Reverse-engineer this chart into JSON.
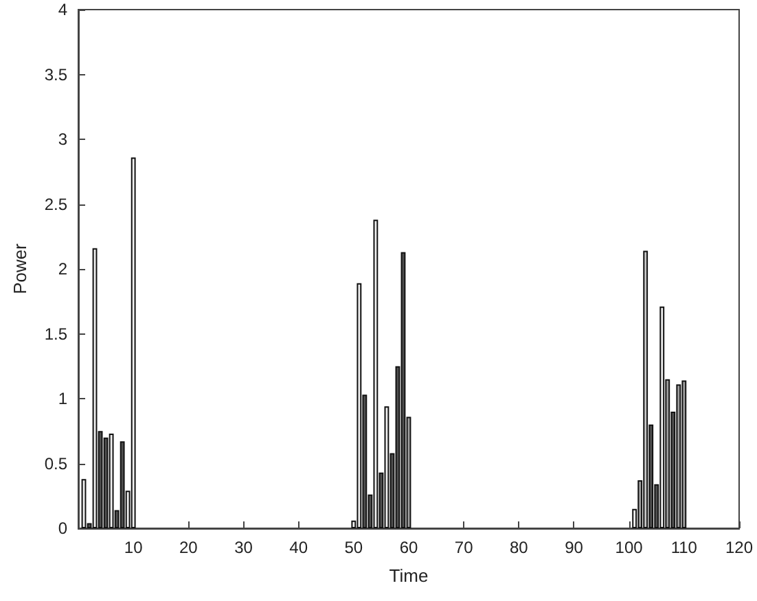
{
  "chart_data": {
    "type": "bar",
    "xlabel": "Time",
    "ylabel": "Power",
    "x": [
      1,
      2,
      3,
      4,
      5,
      6,
      7,
      8,
      9,
      10,
      50,
      51,
      52,
      53,
      54,
      55,
      56,
      57,
      58,
      59,
      60,
      101,
      102,
      103,
      104,
      105,
      106,
      107,
      108,
      109,
      110
    ],
    "values": [
      0.38,
      0.04,
      2.16,
      0.75,
      0.7,
      0.73,
      0.14,
      0.67,
      0.29,
      2.86,
      0.06,
      1.89,
      1.03,
      0.26,
      2.38,
      0.43,
      0.94,
      0.58,
      1.25,
      2.13,
      0.86,
      0.15,
      0.37,
      2.14,
      0.8,
      0.34,
      1.71,
      1.15,
      0.9,
      1.11,
      1.14
    ],
    "colors": [
      "#f0f0f0",
      "#505050",
      "#f0f0f0",
      "#505050",
      "#505050",
      "#f0f0f0",
      "#505050",
      "#505050",
      "#f0f0f0",
      "#f0f0f0",
      "#f0f0f0",
      "#f0f0f0",
      "#505050",
      "#505050",
      "#f0f0f0",
      "#505050",
      "#f0f0f0",
      "#505050",
      "#505050",
      "#505050",
      "#a0a0a0",
      "#f0f0f0",
      "#a0a0a0",
      "#c8c8c8",
      "#505050",
      "#505050",
      "#f0f0f0",
      "#a0a0a0",
      "#505050",
      "#a0a0a0",
      "#a0a0a0"
    ],
    "xlim": [
      0,
      120
    ],
    "xticks": [
      10,
      20,
      30,
      40,
      50,
      60,
      70,
      80,
      90,
      100,
      110,
      120
    ],
    "ylim": [
      0,
      4
    ],
    "yticks": [
      0,
      0.5,
      1,
      1.5,
      2,
      2.5,
      3,
      3.5,
      4
    ],
    "grid": false
  }
}
